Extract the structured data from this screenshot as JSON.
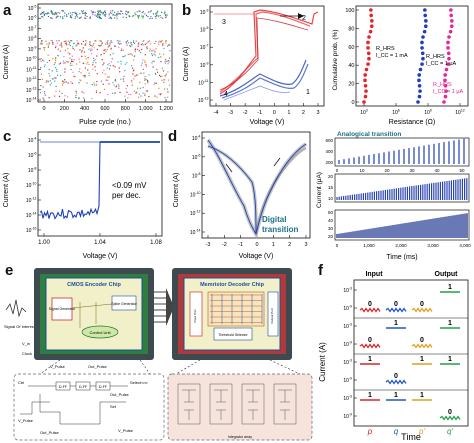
{
  "figure": {
    "panel_labels": [
      "a",
      "b",
      "c",
      "d",
      "e",
      "f"
    ]
  },
  "panel_a": {
    "ylabel": "Current (A)",
    "xlabel": "Pulse cycle (no.)",
    "yticks": [
      "10^-5",
      "10^-6",
      "10^-7",
      "10^-8",
      "10^-9",
      "10^-10",
      "10^-11",
      "10^-12",
      "10^-13",
      "10^-14"
    ],
    "xticks": [
      "0",
      "200",
      "400",
      "600",
      "800",
      "1,000",
      "1,200"
    ]
  },
  "panel_b": {
    "ylabel": "Current (A)",
    "xlabel": "Voltage (V)",
    "xticks": [
      "-4",
      "-3",
      "-2",
      "-1",
      "0",
      "1",
      "2",
      "3"
    ],
    "yticks": [
      "10^-3",
      "10^-5",
      "10^-7",
      "10^-9",
      "10^-11",
      "10^-13"
    ],
    "arrows": [
      "1",
      "2",
      "3",
      "4"
    ],
    "cdf": {
      "ylabel": "Cumulative prob. (%)",
      "xlabel": "Resistance (Ω)",
      "yticks": [
        "100",
        "80",
        "60",
        "40",
        "20",
        "0"
      ],
      "xticks": [
        "10^3",
        "10^6",
        "10^9",
        "10^12"
      ],
      "legend": [
        {
          "label": "R_HRS",
          "sub": "I_CC = 1 mA",
          "color": "#e8242b"
        },
        {
          "label": "R_HRS",
          "sub": "I_CC = 1 μA",
          "color": "#1d3fb8"
        },
        {
          "label": "R_HRS",
          "sub": "I_CC = 1 μA",
          "color": "#e3279a"
        }
      ]
    }
  },
  "panel_c": {
    "ylabel": "Current (A)",
    "xlabel": "Voltage (V)",
    "xticks": [
      "1.00",
      "1.04",
      "1.08"
    ],
    "yticks": [
      "10^-4",
      "10^-6",
      "10^-8",
      "10^-10",
      "10^-12",
      "10^-14",
      "10^-16"
    ],
    "annotation_line1": "<0.09 mV",
    "annotation_line2": "per dec."
  },
  "panel_d": {
    "ylabel": "Current (A)",
    "xlabel": "Voltage (V)",
    "xticks": [
      "-3",
      "-2",
      "-1",
      "0",
      "1",
      "2",
      "3"
    ],
    "yticks": [
      "10^-4",
      "10^-6",
      "10^-8",
      "10^-10",
      "10^-12",
      "10^-14"
    ],
    "annotation_line1": "Digital",
    "annotation_line2": "transition",
    "analog": {
      "title": "Analogical transition",
      "ylabel": "Current (μA)",
      "xlabel": "Time (ms)",
      "xticks": [
        "0",
        "1,000",
        "2,000",
        "3,000",
        "4,000"
      ],
      "top_xticks": [
        "0",
        "10",
        "20",
        "30",
        "40",
        "50"
      ],
      "top_yticks": [
        "600",
        "400",
        "200"
      ],
      "mid_yticks": [
        "10",
        "15",
        "20"
      ],
      "bot_yticks": [
        "20",
        "30",
        "40",
        "50"
      ]
    }
  },
  "panel_e": {
    "chip1_title": "CMOS Encoder Chip",
    "chip2_title": "Memristor Decoder Chip",
    "blocks": [
      "Signal Generator",
      "Control Unit",
      "Spike Generator",
      "Input Port",
      "Output Port",
      "Threshold Selector"
    ],
    "labels": [
      "Signal Of Interest",
      "V_in",
      "Clock",
      "Out_Pulse",
      "V_Pulse",
      "Ctrl",
      "Sel"
    ],
    "timing_labels": [
      "Ctrl",
      "V_Pulse",
      "Out_Pulse",
      "D-FF",
      "D-FF",
      "D-FF",
      "Select<n>",
      "Set",
      "V_Pulse",
      "Out_Pulse"
    ],
    "circuit_caption": "Integrator array"
  },
  "panel_f": {
    "ylabel": "Current (A)",
    "xlabel": "Time",
    "input_header": "Input",
    "output_header": "Output",
    "yticks": [
      "10^-3",
      "10^-9",
      "10^-3",
      "10^-9",
      "10^-3",
      "10^-9",
      "10^-3",
      "10^-9"
    ],
    "rows": [
      {
        "in1": "0",
        "in2": "0",
        "in3": "0",
        "out": "1"
      },
      {
        "in1": "0",
        "in2": "1",
        "in3": "0",
        "out": "1"
      },
      {
        "in1": "1",
        "in2": "0",
        "in3": "1",
        "out": "1"
      },
      {
        "in1": "1",
        "in2": "1",
        "in3": "1",
        "out": "0"
      }
    ],
    "col_symbols": [
      "p",
      "q",
      "p'",
      "q'"
    ],
    "colors": [
      "#d6262b",
      "#1f56c7",
      "#e0a020",
      "#1fa24a"
    ]
  }
}
